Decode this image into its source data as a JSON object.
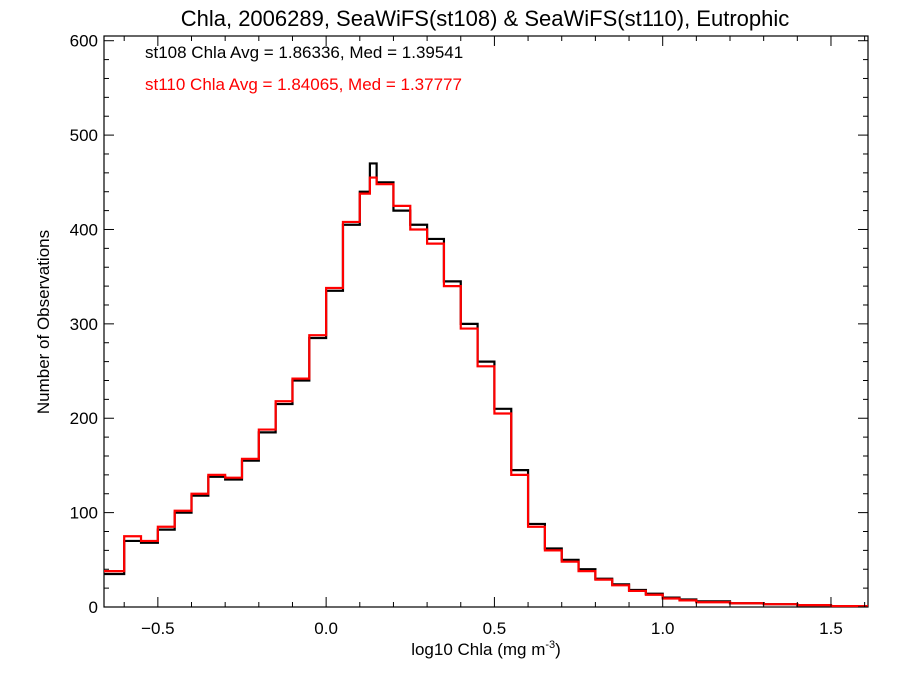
{
  "chart_data": {
    "type": "line",
    "title": "Chla, 2006289, SeaWiFS(st108) & SeaWiFS(st110), Eutrophic",
    "xlabel_main": "log10 Chla (mg m",
    "xlabel_sup": "-3",
    "xlabel_close": ")",
    "ylabel": "Number of Observations",
    "xlim": [
      -0.66,
      1.61
    ],
    "ylim": [
      0,
      605
    ],
    "x_ticks": [
      {
        "value": -0.5,
        "label": "−0.5"
      },
      {
        "value": 0.0,
        "label": "0.0"
      },
      {
        "value": 0.5,
        "label": "0.5"
      },
      {
        "value": 1.0,
        "label": "1.0"
      },
      {
        "value": 1.5,
        "label": "1.5"
      }
    ],
    "y_ticks": [
      {
        "value": 0,
        "label": "0"
      },
      {
        "value": 100,
        "label": "100"
      },
      {
        "value": 200,
        "label": "200"
      },
      {
        "value": 300,
        "label": "300"
      },
      {
        "value": 400,
        "label": "400"
      },
      {
        "value": 500,
        "label": "500"
      },
      {
        "value": 600,
        "label": "600"
      }
    ],
    "annotations": [
      {
        "text": "st108 Chla Avg = 1.86336, Med = 1.39541",
        "color": "#000000"
      },
      {
        "text": "st110 Chla Avg = 1.84065, Med = 1.37777",
        "color": "#ff0000"
      }
    ],
    "bin_width": 0.01,
    "series": [
      {
        "color": "#000000",
        "x": [
          -0.66,
          -0.6,
          -0.55,
          -0.5,
          -0.45,
          -0.4,
          -0.35,
          -0.3,
          -0.25,
          -0.2,
          -0.15,
          -0.1,
          -0.05,
          0.0,
          0.05,
          0.1,
          0.13,
          0.15,
          0.2,
          0.25,
          0.3,
          0.35,
          0.4,
          0.45,
          0.5,
          0.55,
          0.6,
          0.65,
          0.7,
          0.75,
          0.8,
          0.85,
          0.9,
          0.95,
          1.0,
          1.05,
          1.1,
          1.2,
          1.3,
          1.4,
          1.5,
          1.6
        ],
        "y": [
          35,
          70,
          68,
          82,
          100,
          118,
          138,
          135,
          155,
          185,
          215,
          240,
          285,
          335,
          405,
          440,
          470,
          450,
          420,
          405,
          390,
          345,
          300,
          260,
          210,
          145,
          88,
          62,
          50,
          40,
          30,
          24,
          18,
          14,
          10,
          8,
          6,
          4,
          3,
          2,
          1,
          1
        ]
      },
      {
        "color": "#ff0000",
        "x": [
          -0.66,
          -0.6,
          -0.55,
          -0.5,
          -0.45,
          -0.4,
          -0.35,
          -0.3,
          -0.25,
          -0.2,
          -0.15,
          -0.1,
          -0.05,
          0.0,
          0.05,
          0.1,
          0.13,
          0.15,
          0.2,
          0.25,
          0.3,
          0.35,
          0.4,
          0.45,
          0.5,
          0.55,
          0.6,
          0.65,
          0.7,
          0.75,
          0.8,
          0.85,
          0.9,
          0.95,
          1.0,
          1.05,
          1.1,
          1.2,
          1.3,
          1.4,
          1.5,
          1.6
        ],
        "y": [
          38,
          75,
          70,
          85,
          102,
          120,
          140,
          137,
          157,
          188,
          218,
          242,
          288,
          338,
          408,
          438,
          455,
          448,
          425,
          400,
          385,
          340,
          295,
          255,
          205,
          140,
          85,
          60,
          48,
          38,
          29,
          23,
          17,
          13,
          9,
          7,
          5,
          4,
          3,
          2,
          1,
          1
        ]
      }
    ]
  }
}
